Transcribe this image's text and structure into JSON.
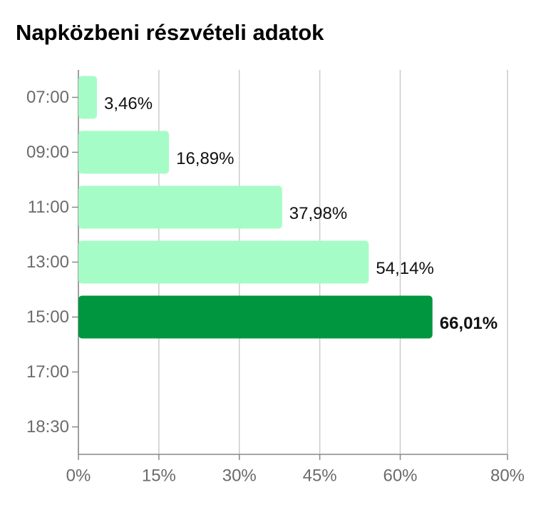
{
  "chart_data": {
    "type": "barh",
    "title": "Napközbeni részvételi adatok",
    "categories": [
      "07:00",
      "09:00",
      "11:00",
      "13:00",
      "15:00",
      "17:00",
      "18:30"
    ],
    "values": [
      3.46,
      16.89,
      37.98,
      54.14,
      66.01,
      null,
      null
    ],
    "value_labels": [
      "3,46%",
      "16,89%",
      "37,98%",
      "54,14%",
      "66,01%",
      null,
      null
    ],
    "color": "#a6fcc6",
    "highlight_color": "#00963f",
    "highlight_index": 4,
    "xlim": [
      0,
      80
    ],
    "xticks": [
      {
        "value": 0,
        "label": "0%"
      },
      {
        "value": 15,
        "label": "15%"
      },
      {
        "value": 30,
        "label": "30%"
      },
      {
        "value": 45,
        "label": "45%"
      },
      {
        "value": 60,
        "label": "60%"
      },
      {
        "value": 80,
        "label": "80%"
      }
    ],
    "grid": true
  }
}
